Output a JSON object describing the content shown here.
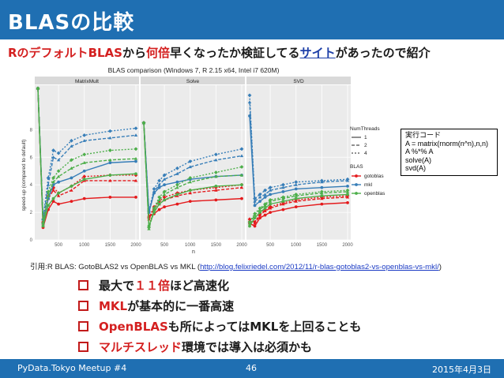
{
  "slide": {
    "title": "BLASの比較",
    "subtitle": {
      "part1": "Rのデフォルト",
      "part2": "BLAS",
      "part3": "から",
      "part4": "何倍",
      "part5": "早くなったか検証してる",
      "part6": "サイト",
      "part7": "があったので紹介"
    },
    "citation": {
      "prefix": "引用:R BLAS: GotoBLAS2 vs OpenBLAS vs MKL (",
      "link": "http://blog.felixriedel.com/2012/11/r-blas-gotoblas2-vs-openblas-vs-mkl/",
      "suffix": ")"
    },
    "code_box": {
      "title": "実行コード",
      "lines": [
        "A = matrix(rnorm(n^n),n,n)",
        "A %*% A",
        "solve(A)",
        "svd(A)"
      ]
    },
    "bullets": [
      {
        "pre": "最大で",
        "highlight": "１１倍",
        "post": "ほど高速化"
      },
      {
        "pre": "",
        "highlight": "MKL",
        "post": "が基本的に一番高速"
      },
      {
        "pre": "",
        "highlight": "OpenBLAS",
        "post": "も所によってはMKLを上回ることも"
      },
      {
        "pre": "",
        "highlight": "マルチスレッド",
        "post": "環境では導入は必須かも"
      }
    ],
    "footer": {
      "left": "PyData.Tokyo Meetup #4",
      "center": "46",
      "right": "2015年4月3日"
    },
    "colors": {
      "accent": "#1f6fb2",
      "highlight": "#d42020"
    }
  },
  "chart_data": {
    "type": "line",
    "title": "BLAS comparison (Windows 7, R 2.15 x64, Intel i7 620M)",
    "ylabel": "speed-up (compared to default)",
    "xlabel": "n",
    "x_ticks": [
      "500",
      "1000",
      "1500",
      "2000"
    ],
    "y_ticks": [
      "0",
      "2",
      "4",
      "6",
      "8"
    ],
    "ylim": [
      0,
      11
    ],
    "xlim": [
      100,
      2000
    ],
    "panels": [
      "MatrixMult",
      "Solve",
      "SVD"
    ],
    "legend": {
      "threads_title": "NumThreads",
      "threads": [
        "1",
        "2",
        "4"
      ],
      "blas_title": "BLAS",
      "blas": [
        "gotoblas",
        "mkl",
        "openblas"
      ]
    },
    "series_colors": {
      "gotoblas": "#e41a1c",
      "mkl": "#377eb8",
      "openblas": "#4daf4a"
    },
    "x": [
      100,
      200,
      300,
      400,
      500,
      750,
      1000,
      1500,
      2000
    ],
    "series": [
      {
        "panel": "MatrixMult",
        "blas": "gotoblas",
        "threads": "1",
        "values": [
          11,
          0.9,
          2.2,
          2.8,
          2.6,
          2.8,
          3.0,
          3.1,
          3.1
        ]
      },
      {
        "panel": "MatrixMult",
        "blas": "gotoblas",
        "threads": "2",
        "values": [
          11,
          1.2,
          3.0,
          3.6,
          3.2,
          3.6,
          4.3,
          4.3,
          4.3
        ]
      },
      {
        "panel": "MatrixMult",
        "blas": "gotoblas",
        "threads": "4",
        "values": [
          11,
          1.3,
          3.2,
          3.8,
          3.4,
          3.9,
          4.6,
          4.7,
          4.7
        ]
      },
      {
        "panel": "MatrixMult",
        "blas": "mkl",
        "threads": "1",
        "values": [
          11,
          1.2,
          3.0,
          4.0,
          4.2,
          4.5,
          5.0,
          5.6,
          5.7
        ]
      },
      {
        "panel": "MatrixMult",
        "blas": "mkl",
        "threads": "2",
        "values": [
          11,
          1.5,
          4.0,
          6.0,
          5.8,
          6.8,
          7.2,
          7.4,
          7.6
        ]
      },
      {
        "panel": "MatrixMult",
        "blas": "mkl",
        "threads": "4",
        "values": [
          11,
          1.5,
          4.5,
          6.5,
          6.3,
          7.2,
          7.6,
          7.9,
          8.1
        ]
      },
      {
        "panel": "MatrixMult",
        "blas": "openblas",
        "threads": "1",
        "values": [
          11,
          1.0,
          2.5,
          3.0,
          3.4,
          3.9,
          4.4,
          4.7,
          4.8
        ]
      },
      {
        "panel": "MatrixMult",
        "blas": "openblas",
        "threads": "2",
        "values": [
          11,
          1.1,
          3.2,
          4.2,
          4.6,
          5.2,
          5.6,
          5.8,
          5.9
        ]
      },
      {
        "panel": "MatrixMult",
        "blas": "openblas",
        "threads": "4",
        "values": [
          11,
          1.2,
          3.5,
          4.5,
          5.0,
          5.8,
          6.2,
          6.5,
          6.6
        ]
      },
      {
        "panel": "Solve",
        "blas": "gotoblas",
        "threads": "1",
        "values": [
          8.5,
          1.7,
          1.9,
          2.2,
          2.4,
          2.6,
          2.8,
          2.9,
          3.0
        ]
      },
      {
        "panel": "Solve",
        "blas": "gotoblas",
        "threads": "2",
        "values": [
          8.5,
          1.5,
          2.3,
          2.6,
          2.9,
          3.2,
          3.4,
          3.6,
          3.8
        ]
      },
      {
        "panel": "Solve",
        "blas": "gotoblas",
        "threads": "4",
        "values": [
          8.5,
          1.6,
          2.4,
          2.8,
          3.1,
          3.4,
          3.6,
          3.8,
          4.0
        ]
      },
      {
        "panel": "Solve",
        "blas": "mkl",
        "threads": "1",
        "values": [
          8.5,
          2.0,
          3.4,
          3.8,
          4.0,
          4.2,
          4.4,
          4.6,
          4.7
        ]
      },
      {
        "panel": "Solve",
        "blas": "mkl",
        "threads": "2",
        "values": [
          8.5,
          2.0,
          3.5,
          4.0,
          4.4,
          4.8,
          5.3,
          5.8,
          6.1
        ]
      },
      {
        "panel": "Solve",
        "blas": "mkl",
        "threads": "4",
        "values": [
          8.5,
          2.1,
          3.7,
          4.3,
          4.7,
          5.2,
          5.7,
          6.2,
          6.6
        ]
      },
      {
        "panel": "Solve",
        "blas": "openblas",
        "threads": "1",
        "values": [
          8.5,
          1.0,
          2.0,
          2.6,
          2.9,
          3.3,
          3.6,
          3.9,
          4.0
        ]
      },
      {
        "panel": "Solve",
        "blas": "openblas",
        "threads": "2",
        "values": [
          8.5,
          0.8,
          2.2,
          2.9,
          3.3,
          3.8,
          4.2,
          4.6,
          4.7
        ]
      },
      {
        "panel": "Solve",
        "blas": "openblas",
        "threads": "4",
        "values": [
          8.5,
          0.9,
          2.3,
          3.1,
          3.5,
          4.0,
          4.5,
          4.9,
          5.3
        ]
      },
      {
        "panel": "SVD",
        "blas": "gotoblas",
        "threads": "1",
        "values": [
          1.2,
          1.0,
          1.6,
          1.8,
          2.0,
          2.2,
          2.4,
          2.6,
          2.7
        ]
      },
      {
        "panel": "SVD",
        "blas": "gotoblas",
        "threads": "2",
        "values": [
          1.4,
          1.2,
          1.8,
          2.1,
          2.3,
          2.6,
          2.8,
          3.0,
          3.1
        ]
      },
      {
        "panel": "SVD",
        "blas": "gotoblas",
        "threads": "4",
        "values": [
          1.5,
          1.3,
          1.9,
          2.2,
          2.4,
          2.7,
          2.9,
          3.1,
          3.2
        ]
      },
      {
        "panel": "SVD",
        "blas": "mkl",
        "threads": "1",
        "values": [
          9.0,
          2.5,
          2.8,
          3.1,
          3.3,
          3.5,
          3.7,
          3.8,
          3.9
        ]
      },
      {
        "panel": "SVD",
        "blas": "mkl",
        "threads": "2",
        "values": [
          10.0,
          2.8,
          3.1,
          3.3,
          3.6,
          3.8,
          4.0,
          4.2,
          4.3
        ]
      },
      {
        "panel": "SVD",
        "blas": "mkl",
        "threads": "4",
        "values": [
          10.5,
          3.0,
          3.3,
          3.6,
          3.8,
          4.0,
          4.2,
          4.3,
          4.4
        ]
      },
      {
        "panel": "SVD",
        "blas": "openblas",
        "threads": "1",
        "values": [
          1.0,
          1.6,
          2.0,
          2.3,
          2.6,
          2.8,
          3.0,
          3.2,
          3.3
        ]
      },
      {
        "panel": "SVD",
        "blas": "openblas",
        "threads": "2",
        "values": [
          1.2,
          1.8,
          2.2,
          2.5,
          2.8,
          3.0,
          3.2,
          3.4,
          3.5
        ]
      },
      {
        "panel": "SVD",
        "blas": "openblas",
        "threads": "4",
        "values": [
          1.3,
          1.9,
          2.3,
          2.6,
          2.9,
          3.1,
          3.3,
          3.5,
          3.6
        ]
      }
    ]
  }
}
